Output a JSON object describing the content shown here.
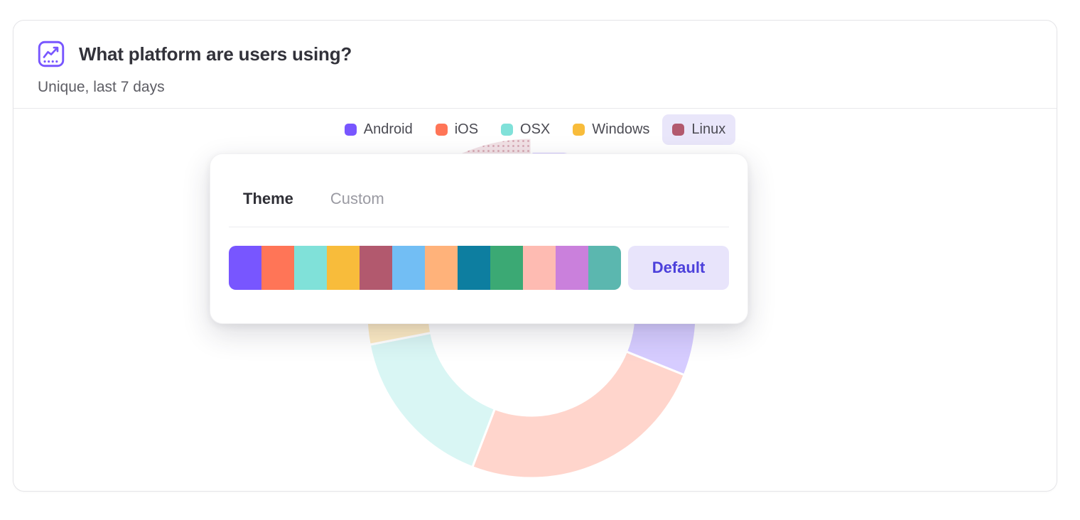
{
  "card": {
    "title": "What platform are users using?",
    "subtitle": "Unique, last 7 days",
    "icon_color": "#7856FF"
  },
  "legend": {
    "highlight_bg": "#E9E6FA",
    "items": [
      {
        "label": "Android",
        "color": "#7856FF",
        "highlighted": false
      },
      {
        "label": "iOS",
        "color": "#FF7557",
        "highlighted": false
      },
      {
        "label": "OSX",
        "color": "#80E1D9",
        "highlighted": false
      },
      {
        "label": "Windows",
        "color": "#F8BC3B",
        "highlighted": false
      },
      {
        "label": "Linux",
        "color": "#B2596E",
        "highlighted": true
      }
    ]
  },
  "popover": {
    "tabs": [
      {
        "label": "Theme",
        "active": true
      },
      {
        "label": "Custom",
        "active": false
      }
    ],
    "palette": [
      "#7856FF",
      "#FF7557",
      "#80E1D9",
      "#F8BC3B",
      "#B2596E",
      "#72BEF4",
      "#FFB27A",
      "#0D7EA0",
      "#3BA974",
      "#FEBBB2",
      "#CA80DC",
      "#5BB7AF"
    ],
    "default_button_label": "Default",
    "accent_text": "#4C40DB",
    "accent_bg": "#E8E4FB"
  },
  "chart_data": {
    "type": "pie",
    "donut": true,
    "title": "What platform are users using?",
    "subtitle": "Unique, last 7 days",
    "legend_position": "top",
    "categories": [
      "Android",
      "iOS",
      "OSX",
      "Windows",
      "Linux"
    ],
    "values": [
      31.1,
      24.7,
      16.1,
      19.7,
      8.3
    ],
    "unit": "percent of unique users, last 7 days",
    "segments": [
      {
        "name": "Android",
        "color": "#7856FF",
        "start_deg": 0,
        "end_deg": 112,
        "value_pct": 31.1,
        "highlighted": false
      },
      {
        "name": "iOS",
        "color": "#FF7557",
        "start_deg": 112,
        "end_deg": 201,
        "value_pct": 24.7,
        "highlighted": false
      },
      {
        "name": "OSX",
        "color": "#80E1D9",
        "start_deg": 201,
        "end_deg": 259,
        "value_pct": 16.1,
        "highlighted": false
      },
      {
        "name": "Windows",
        "color": "#F8BC3B",
        "start_deg": 259,
        "end_deg": 330,
        "value_pct": 19.7,
        "highlighted": false
      },
      {
        "name": "Linux",
        "color": "#B2596E",
        "start_deg": 330,
        "end_deg": 360,
        "value_pct": 8.3,
        "highlighted": true
      }
    ],
    "faded_opacity": 0.3
  }
}
